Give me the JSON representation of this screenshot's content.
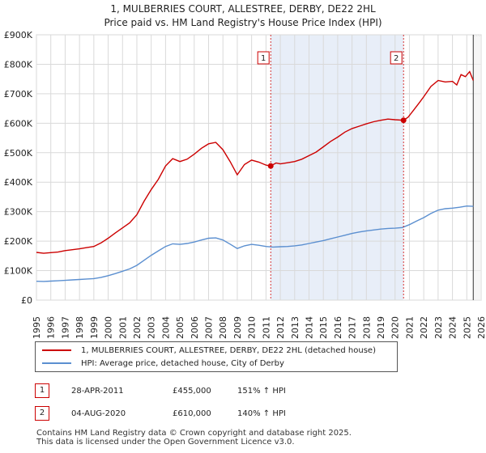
{
  "chart_data": {
    "type": "line",
    "title": "1, MULBERRIES COURT, ALLESTREE, DERBY, DE22 2HL",
    "subtitle": "Price paid vs. HM Land Registry's House Price Index (HPI)",
    "x_ticks": [
      "1995",
      "1996",
      "1997",
      "1998",
      "1999",
      "2000",
      "2001",
      "2002",
      "2003",
      "2004",
      "2005",
      "2006",
      "2007",
      "2008",
      "2009",
      "2010",
      "2011",
      "2012",
      "2013",
      "2014",
      "2015",
      "2016",
      "2017",
      "2018",
      "2019",
      "2020",
      "2021",
      "2022",
      "2023",
      "2024",
      "2025",
      "2026"
    ],
    "y_ticks": [
      "£0",
      "£100K",
      "£200K",
      "£300K",
      "£400K",
      "£500K",
      "£600K",
      "£700K",
      "£800K",
      "£900K"
    ],
    "xlim": [
      1995,
      2026
    ],
    "ylim": [
      0,
      900000
    ],
    "series": [
      {
        "name": "1, MULBERRIES COURT, ALLESTREE, DERBY, DE22 2HL (detached house)",
        "color": "#cc0000",
        "x": [
          1995.0,
          1995.5,
          1996.0,
          1996.5,
          1997.0,
          1997.5,
          1998.0,
          1998.5,
          1999.0,
          1999.5,
          2000.0,
          2000.5,
          2001.0,
          2001.5,
          2002.0,
          2002.5,
          2003.0,
          2003.5,
          2004.0,
          2004.5,
          2005.0,
          2005.5,
          2006.0,
          2006.5,
          2007.0,
          2007.5,
          2008.0,
          2008.5,
          2009.0,
          2009.5,
          2010.0,
          2010.5,
          2011.0,
          2011.33,
          2011.7,
          2012.0,
          2012.5,
          2013.0,
          2013.5,
          2014.0,
          2014.5,
          2015.0,
          2015.5,
          2016.0,
          2016.5,
          2017.0,
          2017.5,
          2018.0,
          2018.5,
          2019.0,
          2019.5,
          2020.0,
          2020.59,
          2020.9,
          2021.3,
          2021.7,
          2022.0,
          2022.5,
          2023.0,
          2023.5,
          2024.0,
          2024.3,
          2024.6,
          2024.9,
          2025.2,
          2025.45
        ],
        "values": [
          162000,
          159000,
          161000,
          163000,
          168000,
          171000,
          174000,
          178000,
          182000,
          194000,
          210000,
          228000,
          245000,
          262000,
          290000,
          335000,
          375000,
          410000,
          455000,
          480000,
          470000,
          478000,
          495000,
          515000,
          530000,
          535000,
          510000,
          470000,
          425000,
          460000,
          475000,
          468000,
          458000,
          455000,
          465000,
          462000,
          466000,
          470000,
          478000,
          490000,
          502000,
          520000,
          538000,
          553000,
          570000,
          582000,
          590000,
          598000,
          605000,
          610000,
          614000,
          612000,
          610000,
          620000,
          645000,
          670000,
          690000,
          725000,
          745000,
          740000,
          742000,
          730000,
          765000,
          758000,
          775000,
          745000
        ]
      },
      {
        "name": "HPI: Average price, detached house, City of Derby",
        "color": "#5b8fd0",
        "x": [
          1995.0,
          1995.5,
          1996.0,
          1996.5,
          1997.0,
          1997.5,
          1998.0,
          1998.5,
          1999.0,
          1999.5,
          2000.0,
          2000.5,
          2001.0,
          2001.5,
          2002.0,
          2002.5,
          2003.0,
          2003.5,
          2004.0,
          2004.5,
          2005.0,
          2005.5,
          2006.0,
          2006.5,
          2007.0,
          2007.5,
          2008.0,
          2008.5,
          2009.0,
          2009.5,
          2010.0,
          2010.5,
          2011.0,
          2011.5,
          2012.0,
          2012.5,
          2013.0,
          2013.5,
          2014.0,
          2014.5,
          2015.0,
          2015.5,
          2016.0,
          2016.5,
          2017.0,
          2017.5,
          2018.0,
          2018.5,
          2019.0,
          2019.5,
          2020.0,
          2020.5,
          2021.0,
          2021.5,
          2022.0,
          2022.5,
          2023.0,
          2023.5,
          2024.0,
          2024.5,
          2025.0,
          2025.45
        ],
        "values": [
          64000,
          63500,
          64500,
          65500,
          67000,
          68500,
          70000,
          71500,
          73000,
          77000,
          83000,
          90000,
          98000,
          106000,
          118000,
          135000,
          152000,
          167000,
          182000,
          191000,
          189000,
          192000,
          197000,
          204000,
          210000,
          211000,
          204000,
          190000,
          175000,
          184000,
          189000,
          186000,
          182000,
          180000,
          181000,
          182000,
          184000,
          187000,
          192000,
          197000,
          202000,
          208000,
          214000,
          220000,
          226000,
          231000,
          235000,
          238000,
          241000,
          243000,
          244000,
          246000,
          256000,
          268000,
          280000,
          294000,
          305000,
          310000,
          312000,
          315000,
          319000,
          318000
        ]
      }
    ],
    "annotations": [
      {
        "label": "1",
        "x": 2011.33,
        "y": 455000
      },
      {
        "label": "2",
        "x": 2020.59,
        "y": 610000
      }
    ],
    "shaded_ranges": [
      [
        2011.33,
        2020.59
      ]
    ]
  },
  "legend": {
    "property_label": "1, MULBERRIES COURT, ALLESTREE, DERBY, DE22 2HL (detached house)",
    "hpi_label": "HPI: Average price, detached house, City of Derby"
  },
  "sales": [
    {
      "num": "1",
      "date": "28-APR-2011",
      "price": "£455,000",
      "hpi": "151% ↑ HPI"
    },
    {
      "num": "2",
      "date": "04-AUG-2020",
      "price": "£610,000",
      "hpi": "140% ↑ HPI"
    }
  ],
  "footer": {
    "line1": "Contains HM Land Registry data © Crown copyright and database right 2025.",
    "line2": "This data is licensed under the Open Government Licence v3.0."
  }
}
